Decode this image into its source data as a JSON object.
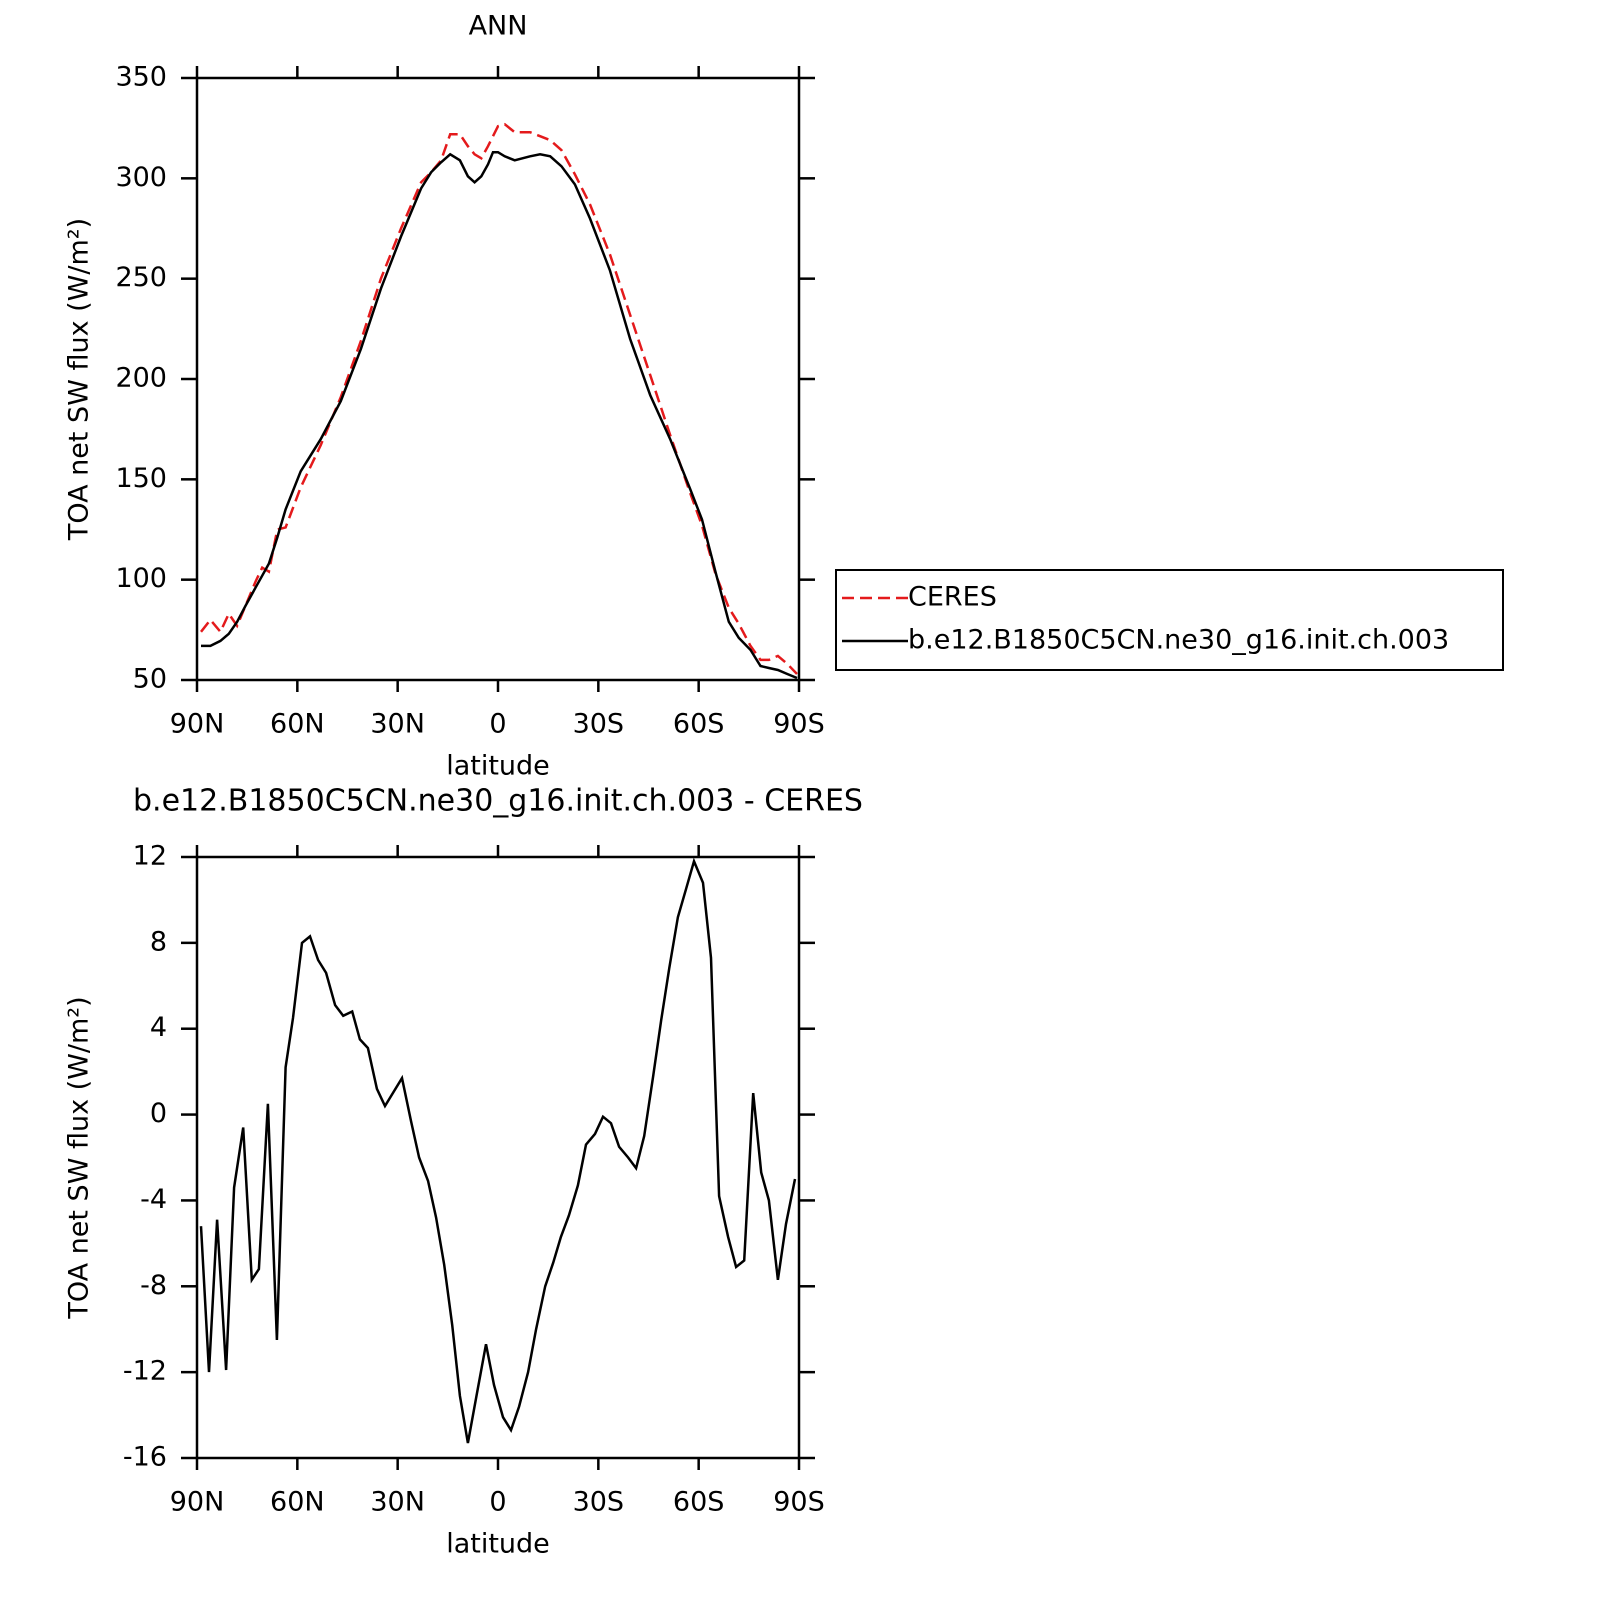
{
  "chart_data": [
    {
      "type": "line",
      "title": "ANN",
      "xlabel": "latitude",
      "ylabel": "TOA net SW flux (W/m²)",
      "legend": "right",
      "xlim": [
        90,
        -90
      ],
      "xticks": [
        {
          "value": 90,
          "label": "90N"
        },
        {
          "value": 60,
          "label": "60N"
        },
        {
          "value": 30,
          "label": "30N"
        },
        0,
        {
          "value": -30,
          "label": "30S"
        },
        {
          "value": -60,
          "label": "60S"
        },
        {
          "value": -90,
          "label": "90S"
        }
      ],
      "ylim": [
        50,
        350
      ],
      "yticks": [
        50,
        100,
        150,
        200,
        250,
        300,
        350
      ],
      "x": [
        88.8,
        86,
        83,
        80.5,
        78,
        75.5,
        72.5,
        70.5,
        68.5,
        66,
        63.5,
        59,
        53,
        47,
        41,
        35,
        29,
        23,
        20,
        17,
        14.3,
        11.4,
        9,
        7,
        5,
        3,
        1.5,
        0,
        -2,
        -5,
        -9.6,
        -12.6,
        -15.6,
        -19,
        -23,
        -27.5,
        -33.5,
        -39.5,
        -45.5,
        -51.5,
        -57.5,
        -61,
        -65,
        -69,
        -72,
        -75.5,
        -78.5,
        -81,
        -83.7,
        -86.5,
        -89.4
      ],
      "series": [
        {
          "name": "CERES",
          "color": "#e41a1c",
          "dash": "dashed",
          "values": [
            74,
            80,
            74,
            83,
            77,
            87,
            99,
            106,
            104,
            125,
            126,
            146,
            167,
            191,
            219,
            250,
            275,
            298,
            303,
            309,
            322,
            322,
            316,
            312,
            310,
            316,
            321,
            326,
            327,
            323,
            323,
            321,
            319,
            314,
            302,
            287,
            262,
            232,
            202,
            172,
            143,
            127,
            103,
            86,
            78,
            67,
            60,
            60,
            62,
            58,
            53
          ]
        },
        {
          "name": "b.e12.B1850C5CN.ne30_g16.init.ch.003",
          "color": "#000000",
          "dash": "solid",
          "values": [
            67,
            67,
            69.5,
            73,
            79,
            87,
            96,
            102,
            108,
            121,
            135,
            154,
            170,
            189,
            215,
            245,
            271,
            295,
            303,
            308,
            312,
            309,
            301,
            298,
            301,
            307,
            313,
            313,
            311,
            309,
            311,
            312,
            311,
            306,
            297,
            280,
            254,
            220,
            192,
            170,
            145,
            130,
            104,
            79,
            71,
            65,
            57,
            56,
            55,
            53,
            51
          ]
        }
      ]
    },
    {
      "type": "line",
      "title": "b.e12.B1850C5CN.ne30_g16.init.ch.003 - CERES",
      "xlabel": "latitude",
      "ylabel": "TOA net SW flux (W/m²)",
      "xlim": [
        90,
        -90
      ],
      "xticks": [
        {
          "value": 90,
          "label": "90N"
        },
        {
          "value": 60,
          "label": "60N"
        },
        {
          "value": 30,
          "label": "30N"
        },
        0,
        {
          "value": -30,
          "label": "30S"
        },
        {
          "value": -60,
          "label": "60S"
        },
        {
          "value": -90,
          "label": "90S"
        }
      ],
      "ylim": [
        -16,
        12
      ],
      "yticks": [
        -16,
        -12,
        -8,
        -4,
        0,
        4,
        8,
        12
      ],
      "x": [
        88.8,
        86.4,
        84,
        81.3,
        78.9,
        76.2,
        73.6,
        71.5,
        68.8,
        66.1,
        63.5,
        61.3,
        58.6,
        56.2,
        53.8,
        51.4,
        48.7,
        46.3,
        43.6,
        41.3,
        38.9,
        36.2,
        33.8,
        28.7,
        26,
        23.6,
        20.9,
        18.5,
        16.1,
        13.7,
        11.4,
        9,
        6.3,
        3.6,
        1.2,
        -1.5,
        -3.9,
        -6.3,
        -9,
        -11.4,
        -14.1,
        -16.5,
        -18.8,
        -21.2,
        -23.9,
        -26.3,
        -29,
        -31.4,
        -33.8,
        -36.2,
        -38.9,
        -41.3,
        -43.7,
        -46.4,
        -48.8,
        -51.2,
        -53.8,
        -56.2,
        -58.6,
        -61.3,
        -63.7,
        -66.1,
        -68.8,
        -71.2,
        -73.6,
        -76.3,
        -78.7,
        -81,
        -83.7,
        -86.1,
        -88.8
      ],
      "series": [
        {
          "name": "b.e12.B1850C5CN.ne30_g16.init.ch.003 - CERES",
          "color": "#000000",
          "dash": "solid",
          "values": [
            -5.2,
            -12,
            -4.9,
            -11.9,
            -3.4,
            -0.6,
            -7.7,
            -7.2,
            0.5,
            -10.5,
            2.2,
            4.5,
            8,
            8.3,
            7.2,
            6.6,
            5.1,
            4.6,
            4.8,
            3.5,
            3.1,
            1.2,
            0.4,
            1.7,
            -0.3,
            -2,
            -3.1,
            -4.8,
            -7,
            -9.8,
            -13.1,
            -15.3,
            -13,
            -10.7,
            -12.6,
            -14.1,
            -14.7,
            -13.6,
            -12,
            -10,
            -8,
            -6.9,
            -5.7,
            -4.7,
            -3.3,
            -1.4,
            -0.9,
            -0.1,
            -0.4,
            -1.5,
            -2,
            -2.5,
            -1,
            1.8,
            4.4,
            6.8,
            9.2,
            10.5,
            11.8,
            10.8,
            7.3,
            -3.8,
            -5.7,
            -7.1,
            -6.8,
            1,
            -2.7,
            -4,
            -7.7,
            -5.1,
            -3
          ]
        }
      ]
    }
  ]
}
